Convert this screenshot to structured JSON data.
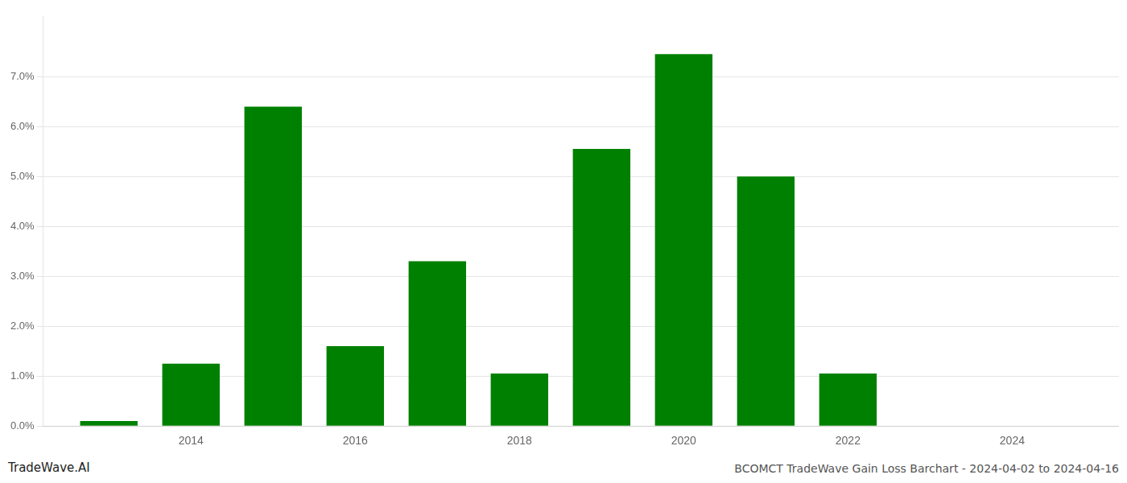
{
  "chart_data": {
    "type": "bar",
    "x": [
      2013,
      2014,
      2015,
      2016,
      2017,
      2018,
      2019,
      2020,
      2021,
      2022,
      2023,
      2024
    ],
    "values": [
      0.001,
      0.0125,
      0.064,
      0.016,
      0.033,
      0.0105,
      0.0555,
      0.0745,
      0.05,
      0.0105,
      0.0,
      0.0
    ],
    "color": "#008000",
    "xlim": [
      2012.2,
      2025.3
    ],
    "xticks": [
      2014,
      2016,
      2018,
      2020,
      2022,
      2024
    ],
    "ylim": [
      0,
      0.082
    ],
    "yticks": [
      {
        "value": 0.0,
        "label": "0.0%"
      },
      {
        "value": 0.01,
        "label": "1.0%"
      },
      {
        "value": 0.02,
        "label": "2.0%"
      },
      {
        "value": 0.03,
        "label": "3.0%"
      },
      {
        "value": 0.04,
        "label": "4.0%"
      },
      {
        "value": 0.05,
        "label": "5.0%"
      },
      {
        "value": 0.06,
        "label": "6.0%"
      },
      {
        "value": 0.07,
        "label": "7.0%"
      }
    ],
    "grid": "y",
    "annotations": [
      "TradeWave.AI",
      "BCOMCT TradeWave Gain Loss Barchart - 2024-04-02 to 2024-04-16"
    ]
  }
}
